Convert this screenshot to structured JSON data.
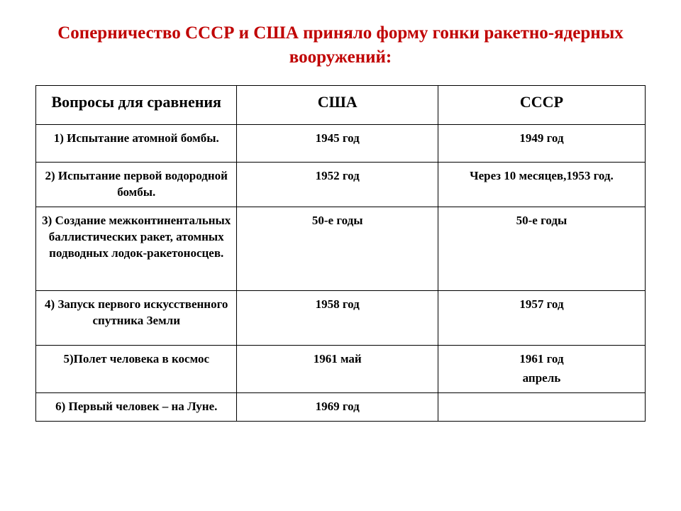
{
  "title": "Соперничество СССР и США приняло форму гонки ракетно-ядерных вооружений:",
  "table": {
    "headers": [
      "Вопросы для сравнения",
      "США",
      "СССР"
    ],
    "rows": [
      {
        "question": "1) Испытание атомной бомбы.",
        "usa": "1945 год",
        "ussr": "1949 год"
      },
      {
        "question": "2) Испытание первой водородной бомбы.",
        "usa": "1952 год",
        "ussr": "Через 10 месяцев,1953 год."
      },
      {
        "question": "3) Создание межконтинентальных баллистических ракет, атомных подводных лодок-ракетоносцев.",
        "usa": "50-е годы",
        "ussr": "50-е годы"
      },
      {
        "question": "4) Запуск первого искусственного спутника Земли",
        "usa": "1958 год",
        "ussr": "1957 год"
      },
      {
        "question": "5)Полет человека в космос",
        "usa": "1961  май",
        "ussr_line1": "1961 год",
        "ussr_line2": "апрель"
      },
      {
        "question": "6) Первый человек – на Луне.",
        "usa": "1969 год",
        "ussr": ""
      }
    ]
  }
}
